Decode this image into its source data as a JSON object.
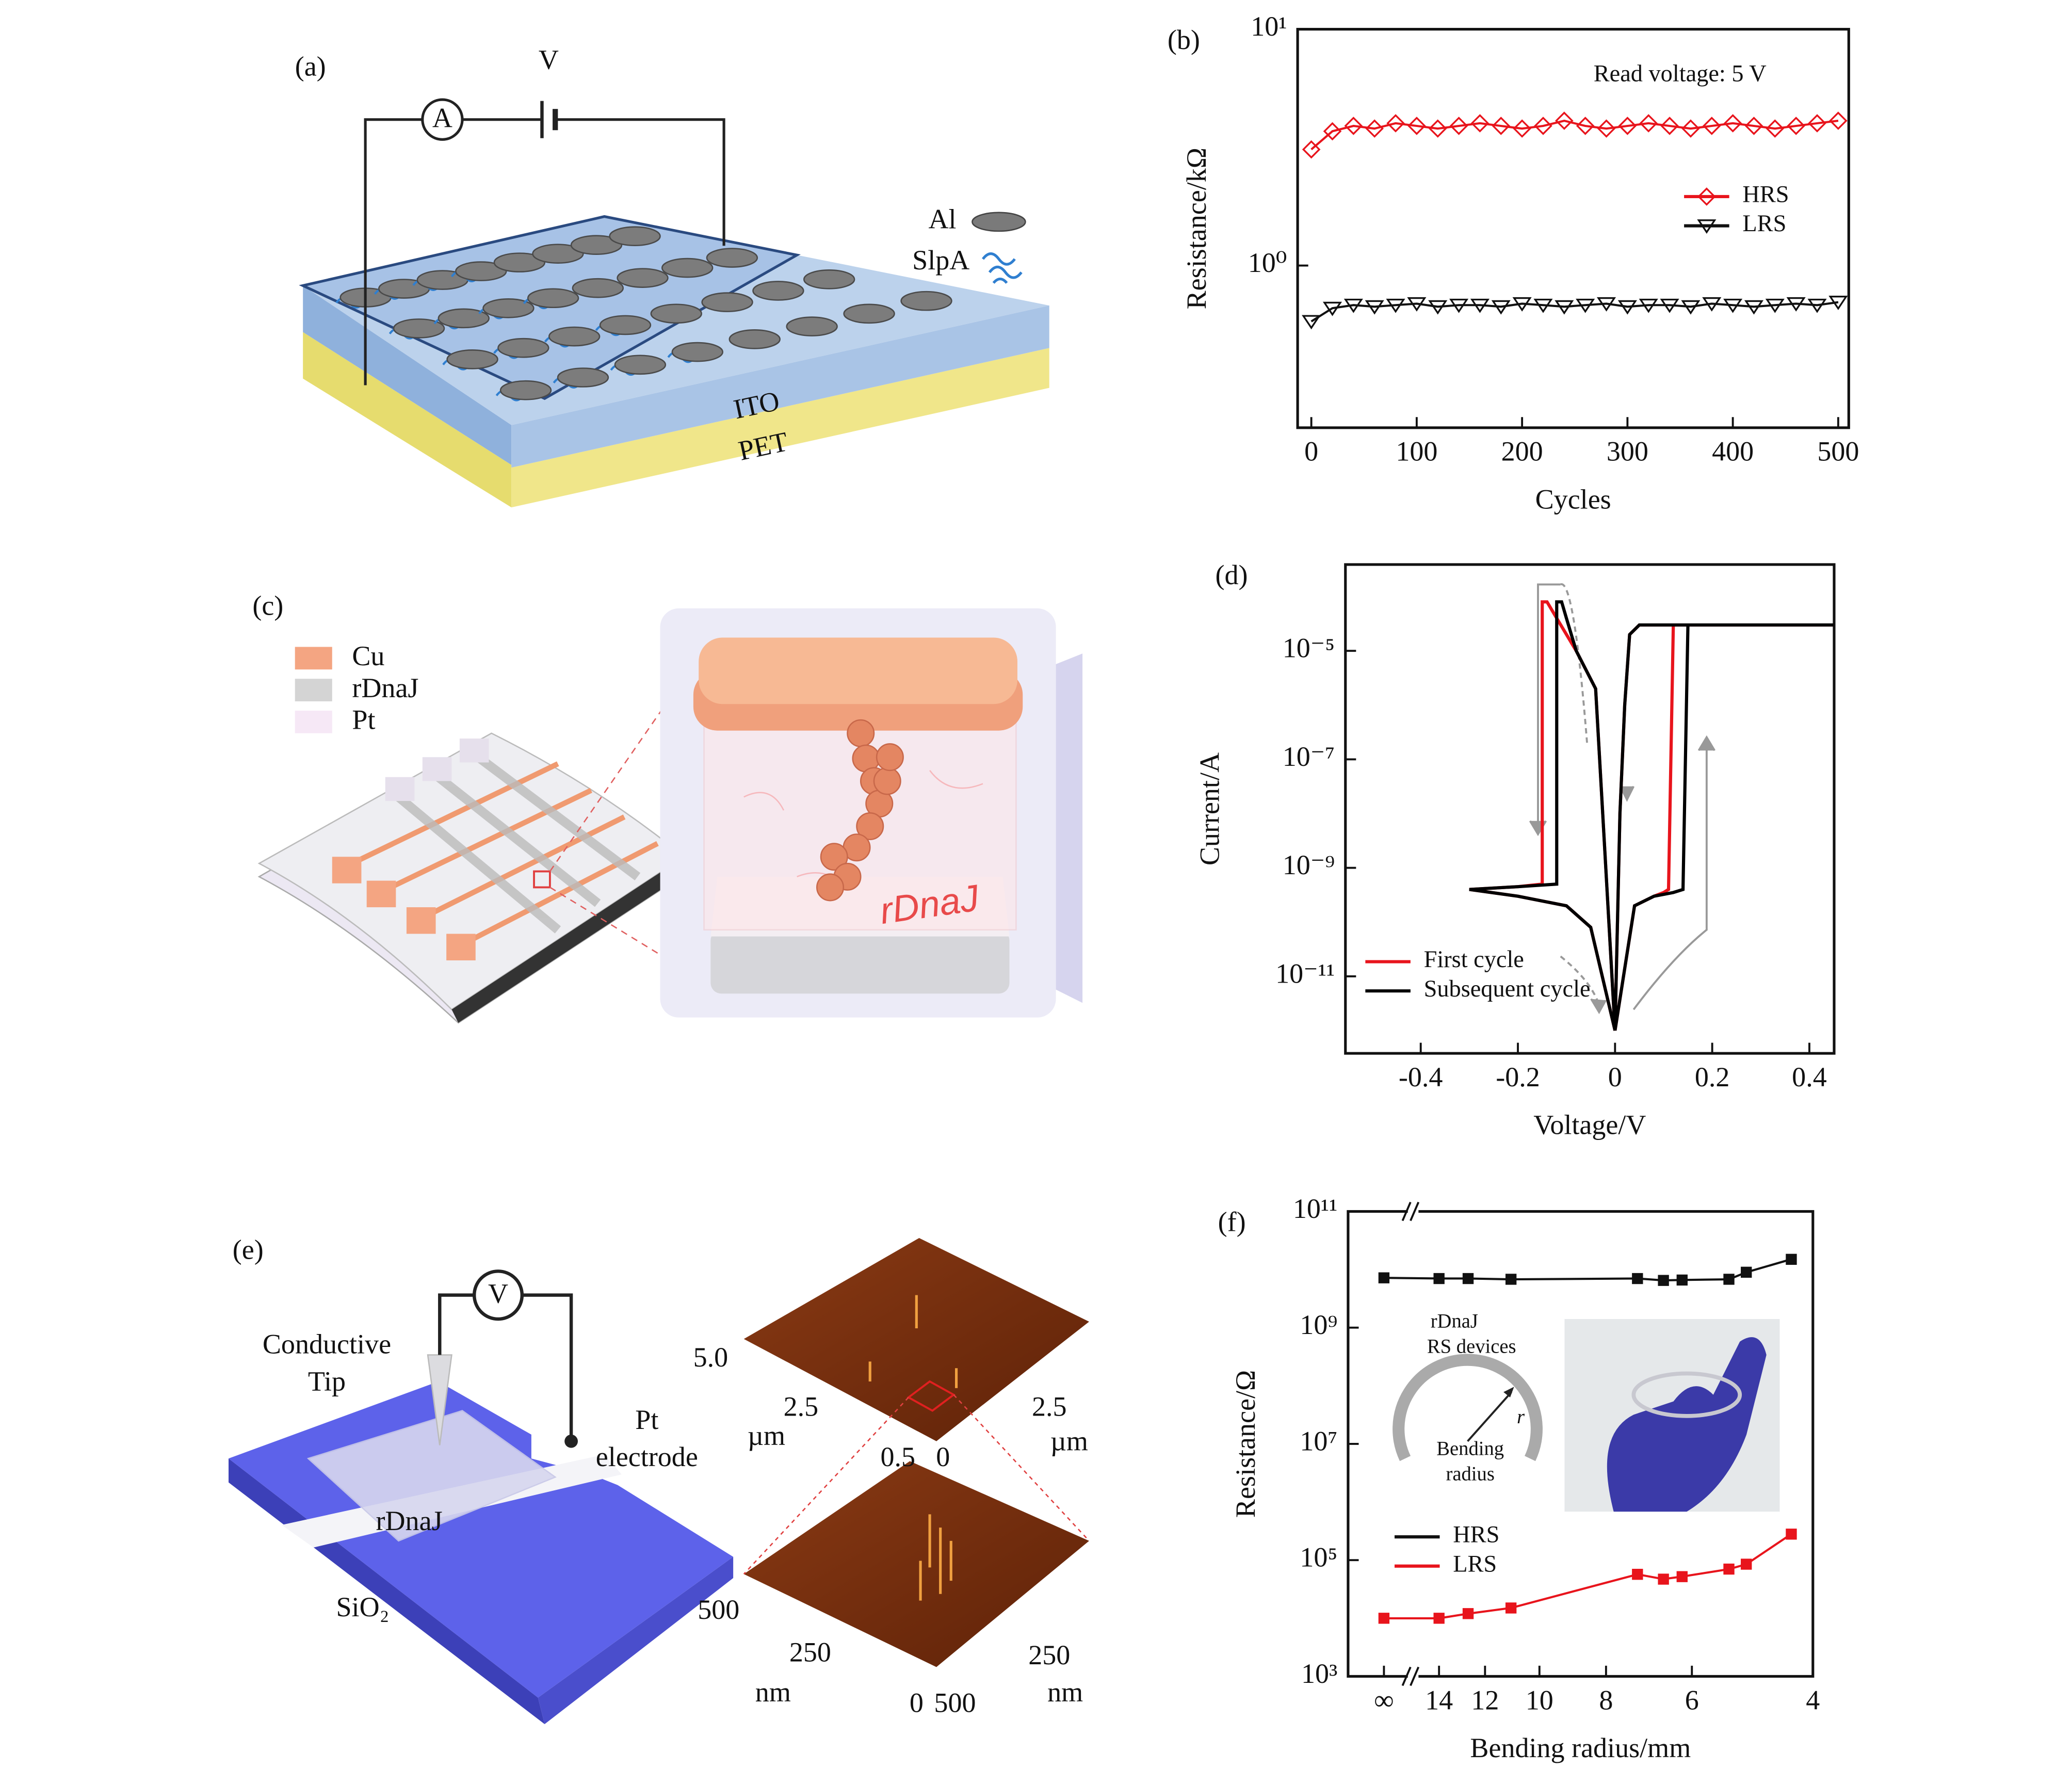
{
  "panel_a": {
    "label": "(a)",
    "voltage": "V",
    "ammeter": "A",
    "electrode": "Al",
    "protein": "SlpA",
    "layer_top": "ITO",
    "substrate": "PET"
  },
  "panel_c": {
    "label": "(c)",
    "legend": [
      "Cu",
      "rDnaJ",
      "Pt"
    ],
    "cell_label": "rDnaJ"
  },
  "panel_e": {
    "label": "(e)",
    "voltmeter": "V",
    "tip": [
      "Conductive",
      "Tip"
    ],
    "electrode": [
      "Pt",
      "electrode"
    ],
    "film": "rDnaJ",
    "substrate": "SiO₂",
    "afm_top": [
      "5.0",
      "2.5",
      "µm",
      "0.5",
      "0",
      "2.5",
      "µm"
    ],
    "afm_bottom": [
      "500",
      "250",
      "nm",
      "0",
      "500",
      "250",
      "nm"
    ]
  },
  "chart_data": [
    {
      "type": "line",
      "panel_label": "(b)",
      "xlabel": "Cycles",
      "ylabel": "Resistance/kΩ",
      "annotation": "Read voltage: 5 V",
      "ylog": true,
      "xlim": [
        -13,
        510
      ],
      "xticks": [
        0,
        100,
        200,
        300,
        400,
        500
      ],
      "ylim": [
        0.206,
        10
      ],
      "yticks": [
        {
          "value": 1,
          "label": "10⁰"
        },
        {
          "value": 10,
          "label": "10¹"
        }
      ],
      "legend": "center right",
      "marker_filled": false,
      "x": [
        0,
        20,
        40,
        60,
        80,
        100,
        120,
        140,
        160,
        180,
        200,
        220,
        240,
        260,
        280,
        300,
        320,
        340,
        360,
        380,
        400,
        420,
        440,
        460,
        480,
        500
      ],
      "series": [
        {
          "name": "HRS",
          "color": "#e8141c",
          "marker": "diamond",
          "values": [
            3.1,
            3.7,
            3.9,
            3.8,
            4.0,
            3.9,
            3.8,
            3.9,
            4.0,
            3.9,
            3.8,
            3.9,
            4.1,
            3.9,
            3.8,
            3.9,
            4.0,
            3.9,
            3.8,
            3.9,
            4.0,
            3.9,
            3.8,
            3.9,
            4.0,
            4.1
          ]
        },
        {
          "name": "LRS",
          "color": "#111111",
          "marker": "triangle-down",
          "values": [
            0.58,
            0.66,
            0.68,
            0.67,
            0.68,
            0.69,
            0.67,
            0.68,
            0.68,
            0.67,
            0.69,
            0.68,
            0.67,
            0.68,
            0.69,
            0.67,
            0.68,
            0.68,
            0.67,
            0.69,
            0.68,
            0.67,
            0.68,
            0.69,
            0.68,
            0.7
          ]
        }
      ]
    },
    {
      "type": "line",
      "panel_label": "(d)",
      "xlabel": "Voltage/V",
      "ylabel": "Current/A",
      "ylog": true,
      "xlim": [
        -0.555,
        0.451
      ],
      "xticks": [
        -0.4,
        -0.2,
        0,
        0.2,
        0.4
      ],
      "ylim": [
        3.8e-13,
        0.00039
      ],
      "yticks": [
        {
          "value": 1e-11,
          "label": "10⁻¹¹"
        },
        {
          "value": 1e-09,
          "label": "10⁻⁹"
        },
        {
          "value": 1e-07,
          "label": "10⁻⁷"
        },
        {
          "value": 1e-05,
          "label": "10⁻⁵"
        }
      ],
      "legend": "lower left",
      "series": [
        {
          "name": "First cycle",
          "color": "#e8141c",
          "x": [
            0,
            0.04,
            0.08,
            0.1,
            0.11,
            0.12,
            0.2,
            0.3,
            0.45,
            0.3,
            0.1,
            0.05,
            0.03,
            0.02,
            0.01,
            0,
            -0.04,
            -0.08,
            -0.12,
            -0.14,
            -0.15,
            -0.15,
            -0.2,
            -0.3,
            -0.2,
            -0.1,
            -0.05,
            0
          ],
          "values": [
            1e-12,
            2e-10,
            3e-10,
            3.5e-10,
            4e-10,
            3e-05,
            3e-05,
            3e-05,
            3e-05,
            3e-05,
            3e-05,
            3e-05,
            2e-05,
            1e-06,
            1e-08,
            1e-12,
            2e-06,
            1e-05,
            4e-05,
            8e-05,
            8e-05,
            5e-10,
            4.5e-10,
            4e-10,
            3e-10,
            2e-10,
            8e-11,
            1e-12
          ]
        },
        {
          "name": "Subsequent cycle",
          "color": "#000000",
          "x": [
            0,
            0.04,
            0.08,
            0.12,
            0.14,
            0.15,
            0.2,
            0.3,
            0.45,
            0.3,
            0.1,
            0.05,
            0.03,
            0.02,
            0.01,
            0,
            -0.04,
            -0.08,
            -0.1,
            -0.11,
            -0.12,
            -0.12,
            -0.2,
            -0.3,
            -0.2,
            -0.1,
            -0.05,
            0
          ],
          "values": [
            1e-12,
            2e-10,
            3e-10,
            3.5e-10,
            4e-10,
            3e-05,
            3e-05,
            3e-05,
            3e-05,
            3e-05,
            3e-05,
            3e-05,
            2e-05,
            1e-06,
            1e-08,
            1e-12,
            2e-06,
            1e-05,
            4e-05,
            8e-05,
            8e-05,
            5e-10,
            4.5e-10,
            4e-10,
            3e-10,
            2e-10,
            8e-11,
            1e-12
          ]
        }
      ]
    },
    {
      "type": "line",
      "panel_label": "(f)",
      "xlabel": "Bending radius/mm",
      "ylabel": "Resistance/Ω",
      "ylog": true,
      "xlog": true,
      "xbreak": true,
      "xlim": [
        15.2,
        4
      ],
      "xticks": [
        {
          "value": null,
          "label": "∞"
        },
        14,
        12,
        10,
        8,
        6,
        4
      ],
      "ylim": [
        1000,
        100000000000.0
      ],
      "yticks": [
        {
          "value": 1000,
          "label": "10³"
        },
        {
          "value": 100000.0,
          "label": "10⁵"
        },
        {
          "value": 10000000.0,
          "label": "10⁷"
        },
        {
          "value": 1000000000.0,
          "label": "10⁹"
        },
        {
          "value": 100000000000.0,
          "label": "10¹¹"
        }
      ],
      "legend": "lower left",
      "marker_filled": true,
      "x": [
        null,
        14,
        12.7,
        11,
        7.2,
        6.6,
        6.2,
        5.3,
        5.0,
        4.3
      ],
      "series": [
        {
          "name": "HRS",
          "color": "#111111",
          "marker": "square",
          "values": [
            7200000000.0,
            7000000000.0,
            7000000000.0,
            6800000000.0,
            7000000000.0,
            6500000000.0,
            6600000000.0,
            6800000000.0,
            9000000000.0,
            15000000000.0
          ]
        },
        {
          "name": "LRS",
          "color": "#e8141c",
          "marker": "square",
          "values": [
            10000.0,
            10000.0,
            12000.0,
            15000.0,
            57000.0,
            47000.0,
            52000.0,
            70000.0,
            85000.0,
            280000.0
          ]
        }
      ],
      "inset": {
        "title": [
          "rDnaJ",
          "RS devices"
        ],
        "radius_symbol": "r",
        "radius_label": [
          "Bending",
          "radius"
        ]
      }
    }
  ]
}
